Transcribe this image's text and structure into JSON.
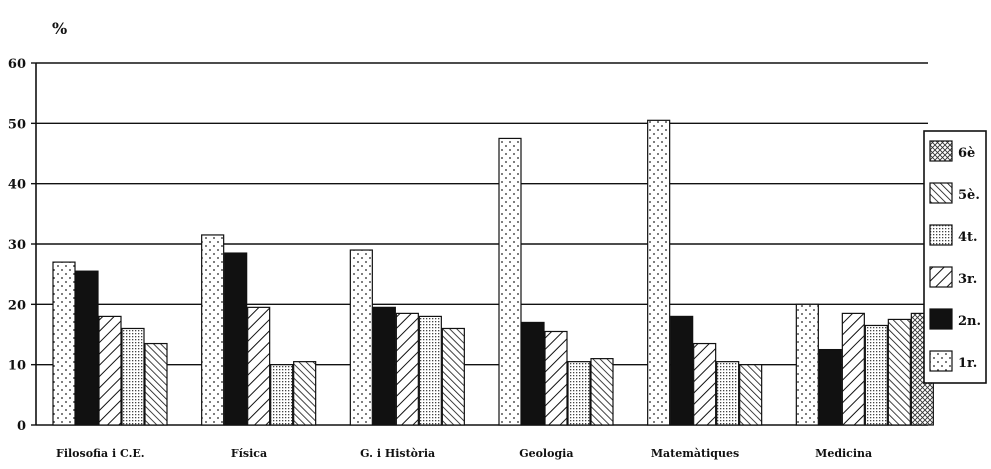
{
  "chart_data": {
    "type": "bar",
    "title": "",
    "xlabel": "",
    "ylabel": "%",
    "ylim": [
      0,
      60
    ],
    "yticks": [
      0,
      10,
      20,
      30,
      40,
      50,
      60
    ],
    "grid": true,
    "legend_position": "right",
    "categories": [
      "Filosofia i C.E.",
      "Física",
      "G. i Història",
      "Geologia",
      "Matemàtiques",
      "Medicina"
    ],
    "series": [
      {
        "name": "1r.",
        "pattern": "dots",
        "values": [
          27,
          31.5,
          29,
          47.5,
          50.5,
          20
        ]
      },
      {
        "name": "2n.",
        "pattern": "solid",
        "values": [
          25.5,
          28.5,
          19.5,
          17,
          18,
          12.5
        ]
      },
      {
        "name": "3r.",
        "pattern": "diagonal",
        "values": [
          18,
          19.5,
          18.5,
          15.5,
          13.5,
          18.5
        ]
      },
      {
        "name": "4t.",
        "pattern": "fine-dots",
        "values": [
          16,
          10,
          18,
          10.5,
          10.5,
          16.5
        ]
      },
      {
        "name": "5è.",
        "pattern": "dense-diagonal",
        "values": [
          13.5,
          10.5,
          16,
          11,
          10,
          17.5
        ]
      },
      {
        "name": "6è",
        "pattern": "crosshatch",
        "values": [
          null,
          null,
          null,
          null,
          null,
          18.5
        ]
      }
    ],
    "legend_order": [
      "6è",
      "5è.",
      "4t.",
      "3r.",
      "2n.",
      "1r."
    ]
  }
}
